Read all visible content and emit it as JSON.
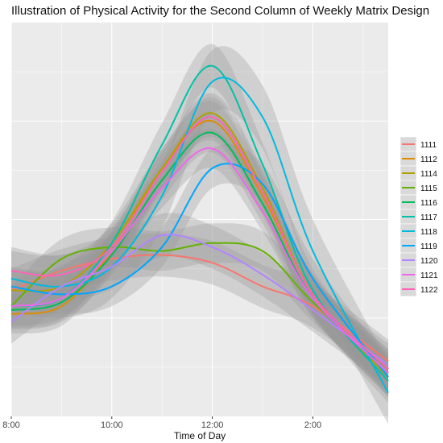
{
  "chart_data": {
    "type": "line",
    "title": "Illustration of Physical Activity for the Second Column of Weekly Matrix Design",
    "xlabel": "Time of Day",
    "ylabel": "",
    "x_tick_values": [
      8,
      10,
      12,
      14
    ],
    "x_tick_labels": [
      "8:00",
      "10:00",
      "12:00",
      "2:00"
    ],
    "xlim": [
      8,
      15.5
    ],
    "ylim": [
      0,
      1
    ],
    "grid": true,
    "smoothed_with_confidence_band": true,
    "legend_position": "right",
    "series": [
      {
        "name": "1111",
        "color": "#F8766D",
        "x": [
          8,
          9,
          10,
          11,
          12,
          13,
          14,
          15.5
        ],
        "y": [
          0.32,
          0.37,
          0.4,
          0.41,
          0.39,
          0.33,
          0.28,
          0.14
        ],
        "band": 0.055
      },
      {
        "name": "1112",
        "color": "#DB8E00",
        "x": [
          8,
          9,
          10,
          11,
          12,
          13,
          14,
          15.5
        ],
        "y": [
          0.26,
          0.28,
          0.42,
          0.63,
          0.75,
          0.56,
          0.31,
          0.1
        ],
        "band": 0.05
      },
      {
        "name": "1114",
        "color": "#AEA200",
        "x": [
          8,
          9,
          10,
          11,
          12,
          13,
          14,
          15.5
        ],
        "y": [
          0.32,
          0.33,
          0.44,
          0.63,
          0.77,
          0.58,
          0.31,
          0.1
        ],
        "band": 0.05
      },
      {
        "name": "1115",
        "color": "#64B200",
        "x": [
          8,
          9,
          10,
          11,
          12,
          13,
          14,
          15.5
        ],
        "y": [
          0.28,
          0.4,
          0.43,
          0.42,
          0.44,
          0.42,
          0.29,
          0.12
        ],
        "band": 0.05
      },
      {
        "name": "1116",
        "color": "#00BD5C",
        "x": [
          8,
          9,
          10,
          11,
          12,
          13,
          14,
          15.5
        ],
        "y": [
          0.27,
          0.29,
          0.41,
          0.6,
          0.72,
          0.54,
          0.3,
          0.11
        ],
        "band": 0.05
      },
      {
        "name": "1117",
        "color": "#00C1A7",
        "x": [
          8,
          9,
          10,
          11,
          12,
          13,
          14,
          15.5
        ],
        "y": [
          0.28,
          0.3,
          0.44,
          0.69,
          0.89,
          0.64,
          0.32,
          0.09
        ],
        "band": 0.055
      },
      {
        "name": "1118",
        "color": "#00BADE",
        "x": [
          8,
          9,
          10,
          11,
          12,
          13,
          14,
          15.5
        ],
        "y": [
          0.35,
          0.33,
          0.38,
          0.56,
          0.85,
          0.76,
          0.42,
          0.06
        ],
        "band": 0.08
      },
      {
        "name": "1119",
        "color": "#00A6FF",
        "x": [
          8,
          9,
          10,
          11,
          12,
          13,
          14,
          15.5
        ],
        "y": [
          0.33,
          0.31,
          0.33,
          0.43,
          0.63,
          0.59,
          0.35,
          0.1
        ],
        "band": 0.05
      },
      {
        "name": "1120",
        "color": "#B385FF",
        "x": [
          8,
          9,
          10,
          11,
          12,
          13,
          14,
          15.5
        ],
        "y": [
          0.24,
          0.33,
          0.38,
          0.46,
          0.43,
          0.36,
          0.27,
          0.13
        ],
        "band": 0.055
      },
      {
        "name": "1121",
        "color": "#EF67EB",
        "x": [
          8,
          9,
          10,
          11,
          12,
          13,
          14,
          15.5
        ],
        "y": [
          0.28,
          0.3,
          0.42,
          0.58,
          0.68,
          0.52,
          0.3,
          0.11
        ],
        "band": 0.05
      },
      {
        "name": "1122",
        "color": "#FF63B6",
        "x": [
          8,
          9,
          10,
          11,
          12,
          13,
          14,
          15.5
        ],
        "y": [
          0.37,
          0.36,
          0.43,
          0.62,
          0.76,
          0.57,
          0.31,
          0.12
        ],
        "band": 0.05
      }
    ]
  }
}
